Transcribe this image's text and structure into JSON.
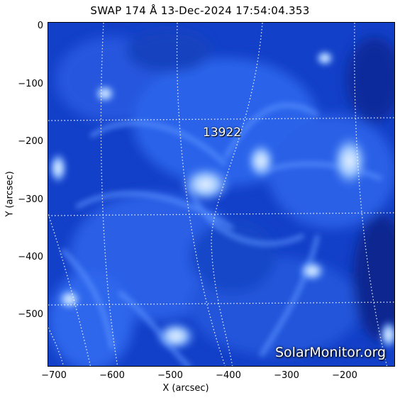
{
  "title": "SWAP 174 Å 13-Dec-2024 17:54:04.353",
  "xlabel": "X (arcsec)",
  "ylabel": "Y (arcsec)",
  "y_ticks": [
    "0",
    "−100",
    "−200",
    "−300",
    "−400",
    "−500"
  ],
  "x_ticks": [
    "−700",
    "−600",
    "−500",
    "−400",
    "−300",
    "−200"
  ],
  "active_region": "13922",
  "watermark": "SolarMonitor.org",
  "colors": {
    "background": "#0a2fb0",
    "plasma": "#2f6bf0",
    "bright": "#cfe6ff"
  }
}
